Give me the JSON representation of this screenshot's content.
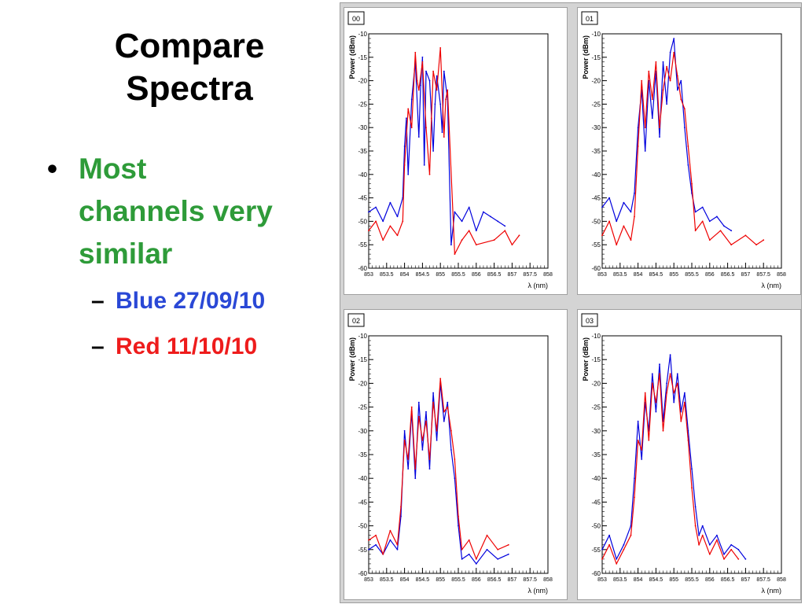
{
  "slide": {
    "title_line1": "Compare",
    "title_line2": "Spectra",
    "bullet": {
      "lines": [
        "Most",
        "channels very",
        "similar"
      ],
      "color": "#2e9b39"
    },
    "sub_bullets": [
      {
        "dash": "–",
        "text": "Blue 27/09/10",
        "color": "#2a48d6"
      },
      {
        "dash": "–",
        "text": "Red 11/10/10",
        "color": "#ee1c1c"
      }
    ]
  },
  "chart_data": [
    {
      "type": "line",
      "panel_label": "00",
      "xlabel": "λ (nm)",
      "ylabel": "Power (dBm)",
      "xlim": [
        853,
        858
      ],
      "ylim": [
        -60,
        -10
      ],
      "x_ticks": [
        "853",
        "853.5",
        "854",
        "854.5",
        "855",
        "855.5",
        "856",
        "856.5",
        "857",
        "857.5",
        "858"
      ],
      "y_ticks": [
        "-10",
        "-15",
        "-20",
        "-25",
        "-30",
        "-35",
        "-40",
        "-45",
        "-50",
        "-55",
        "-60"
      ],
      "series": [
        {
          "color": "#0000dd",
          "x": [
            853.0,
            853.2,
            853.4,
            853.6,
            853.8,
            853.95,
            854.0,
            854.05,
            854.1,
            854.2,
            854.3,
            854.4,
            854.45,
            854.5,
            854.55,
            854.6,
            854.7,
            854.8,
            854.85,
            854.9,
            855.0,
            855.05,
            855.1,
            855.2,
            855.3,
            855.4,
            855.6,
            855.8,
            856.0,
            856.2,
            856.4,
            856.6,
            856.8
          ],
          "y": [
            -48,
            -47,
            -50,
            -46,
            -49,
            -45,
            -34,
            -28,
            -40,
            -24,
            -16,
            -32,
            -21,
            -15,
            -38,
            -18,
            -20,
            -35,
            -25,
            -19,
            -25,
            -31,
            -18,
            -24,
            -55,
            -48,
            -50,
            -47,
            -52,
            -48,
            -49,
            -50,
            -51
          ]
        },
        {
          "color": "#ee0000",
          "x": [
            853.0,
            853.2,
            853.4,
            853.6,
            853.8,
            853.95,
            854.0,
            854.1,
            854.2,
            854.3,
            854.35,
            854.4,
            854.5,
            854.6,
            854.7,
            854.75,
            854.8,
            854.9,
            855.0,
            855.1,
            855.15,
            855.2,
            855.4,
            855.6,
            855.8,
            856.0,
            856.5,
            856.8,
            857.0,
            857.2
          ],
          "y": [
            -52,
            -50,
            -54,
            -51,
            -53,
            -50,
            -38,
            -26,
            -30,
            -14,
            -20,
            -22,
            -16,
            -30,
            -40,
            -28,
            -18,
            -22,
            -13,
            -32,
            -24,
            -22,
            -57,
            -54,
            -52,
            -55,
            -54,
            -52,
            -55,
            -53
          ]
        }
      ]
    },
    {
      "type": "line",
      "panel_label": "01",
      "xlabel": "λ (nm)",
      "ylabel": "Power (dBm)",
      "xlim": [
        853,
        858
      ],
      "ylim": [
        -60,
        -10
      ],
      "x_ticks": [
        "853",
        "853.5",
        "854",
        "854.5",
        "855",
        "855.5",
        "856",
        "856.5",
        "857",
        "857.5",
        "858"
      ],
      "y_ticks": [
        "-10",
        "-15",
        "-20",
        "-25",
        "-30",
        "-35",
        "-40",
        "-45",
        "-50",
        "-55",
        "-60"
      ],
      "series": [
        {
          "color": "#0000dd",
          "x": [
            853.0,
            853.2,
            853.4,
            853.6,
            853.8,
            853.9,
            854.0,
            854.1,
            854.2,
            854.3,
            854.4,
            854.5,
            854.6,
            854.7,
            854.8,
            854.9,
            855.0,
            855.1,
            855.2,
            855.3,
            855.4,
            855.5,
            855.6,
            855.8,
            856.0,
            856.2,
            856.4,
            856.6
          ],
          "y": [
            -47,
            -45,
            -50,
            -46,
            -48,
            -44,
            -30,
            -22,
            -35,
            -20,
            -28,
            -18,
            -32,
            -16,
            -25,
            -14,
            -11,
            -22,
            -20,
            -30,
            -38,
            -44,
            -48,
            -47,
            -50,
            -49,
            -51,
            -52
          ]
        },
        {
          "color": "#ee0000",
          "x": [
            853.0,
            853.2,
            853.4,
            853.6,
            853.8,
            853.9,
            854.0,
            854.1,
            854.2,
            854.3,
            854.4,
            854.5,
            854.6,
            854.7,
            854.8,
            854.9,
            855.0,
            855.1,
            855.2,
            855.3,
            855.4,
            855.5,
            855.6,
            855.8,
            856.0,
            856.3,
            856.6,
            857.0,
            857.3,
            857.5
          ],
          "y": [
            -53,
            -50,
            -55,
            -51,
            -54,
            -49,
            -34,
            -20,
            -30,
            -18,
            -24,
            -16,
            -30,
            -22,
            -17,
            -20,
            -14,
            -19,
            -24,
            -26,
            -34,
            -42,
            -52,
            -50,
            -54,
            -52,
            -55,
            -53,
            -55,
            -54
          ]
        }
      ]
    },
    {
      "type": "line",
      "panel_label": "02",
      "xlabel": "λ (nm)",
      "ylabel": "Power (dBm)",
      "xlim": [
        853,
        858
      ],
      "ylim": [
        -60,
        -10
      ],
      "x_ticks": [
        "853",
        "853.5",
        "854",
        "854.5",
        "855",
        "855.5",
        "856",
        "856.5",
        "857",
        "857.5",
        "858"
      ],
      "y_ticks": [
        "-10",
        "-15",
        "-20",
        "-25",
        "-30",
        "-35",
        "-40",
        "-45",
        "-50",
        "-55",
        "-60"
      ],
      "series": [
        {
          "color": "#0000dd",
          "x": [
            853.0,
            853.2,
            853.4,
            853.6,
            853.8,
            853.9,
            854.0,
            854.1,
            854.2,
            854.3,
            854.4,
            854.5,
            854.6,
            854.7,
            854.8,
            854.9,
            855.0,
            855.1,
            855.2,
            855.3,
            855.4,
            855.5,
            855.6,
            855.8,
            856.0,
            856.3,
            856.6,
            856.9
          ],
          "y": [
            -55,
            -54,
            -56,
            -53,
            -55,
            -48,
            -30,
            -38,
            -26,
            -40,
            -24,
            -34,
            -26,
            -38,
            -22,
            -32,
            -20,
            -28,
            -24,
            -34,
            -40,
            -50,
            -57,
            -56,
            -58,
            -55,
            -57,
            -56
          ]
        },
        {
          "color": "#ee0000",
          "x": [
            853.0,
            853.2,
            853.4,
            853.6,
            853.8,
            853.9,
            854.0,
            854.1,
            854.2,
            854.3,
            854.4,
            854.5,
            854.6,
            854.7,
            854.8,
            854.9,
            855.0,
            855.1,
            855.2,
            855.3,
            855.4,
            855.5,
            855.6,
            855.8,
            856.0,
            856.3,
            856.6,
            856.9
          ],
          "y": [
            -53,
            -52,
            -56,
            -51,
            -54,
            -46,
            -32,
            -36,
            -25,
            -38,
            -27,
            -32,
            -28,
            -36,
            -24,
            -30,
            -19,
            -26,
            -25,
            -30,
            -36,
            -48,
            -55,
            -53,
            -57,
            -52,
            -55,
            -54
          ]
        }
      ]
    },
    {
      "type": "line",
      "panel_label": "03",
      "xlabel": "λ (nm)",
      "ylabel": "Power (dBm)",
      "xlim": [
        853,
        858
      ],
      "ylim": [
        -60,
        -10
      ],
      "x_ticks": [
        "853",
        "853.5",
        "854",
        "854.5",
        "855",
        "855.5",
        "856",
        "856.5",
        "857",
        "857.5",
        "858"
      ],
      "y_ticks": [
        "-10",
        "-15",
        "-20",
        "-25",
        "-30",
        "-35",
        "-40",
        "-45",
        "-50",
        "-55",
        "-60"
      ],
      "series": [
        {
          "color": "#0000dd",
          "x": [
            853.0,
            853.2,
            853.4,
            853.6,
            853.8,
            853.9,
            854.0,
            854.1,
            854.2,
            854.3,
            854.4,
            854.5,
            854.6,
            854.7,
            854.8,
            854.9,
            855.0,
            855.1,
            855.2,
            855.3,
            855.4,
            855.5,
            855.6,
            855.7,
            855.8,
            856.0,
            856.2,
            856.4,
            856.6,
            856.8,
            857.0
          ],
          "y": [
            -55,
            -52,
            -57,
            -54,
            -50,
            -40,
            -28,
            -36,
            -24,
            -30,
            -18,
            -26,
            -16,
            -28,
            -20,
            -14,
            -24,
            -18,
            -26,
            -22,
            -30,
            -38,
            -46,
            -52,
            -50,
            -54,
            -52,
            -56,
            -54,
            -55,
            -57
          ]
        },
        {
          "color": "#ee0000",
          "x": [
            853.0,
            853.2,
            853.4,
            853.6,
            853.8,
            853.9,
            854.0,
            854.1,
            854.2,
            854.3,
            854.4,
            854.5,
            854.6,
            854.7,
            854.8,
            854.9,
            855.0,
            855.1,
            855.2,
            855.3,
            855.4,
            855.5,
            855.6,
            855.7,
            855.8,
            856.0,
            856.2,
            856.4,
            856.6,
            856.8
          ],
          "y": [
            -57,
            -54,
            -58,
            -55,
            -52,
            -44,
            -32,
            -34,
            -22,
            -32,
            -20,
            -24,
            -18,
            -30,
            -22,
            -18,
            -22,
            -20,
            -28,
            -24,
            -32,
            -42,
            -50,
            -54,
            -52,
            -56,
            -53,
            -57,
            -55,
            -57
          ]
        }
      ]
    }
  ]
}
